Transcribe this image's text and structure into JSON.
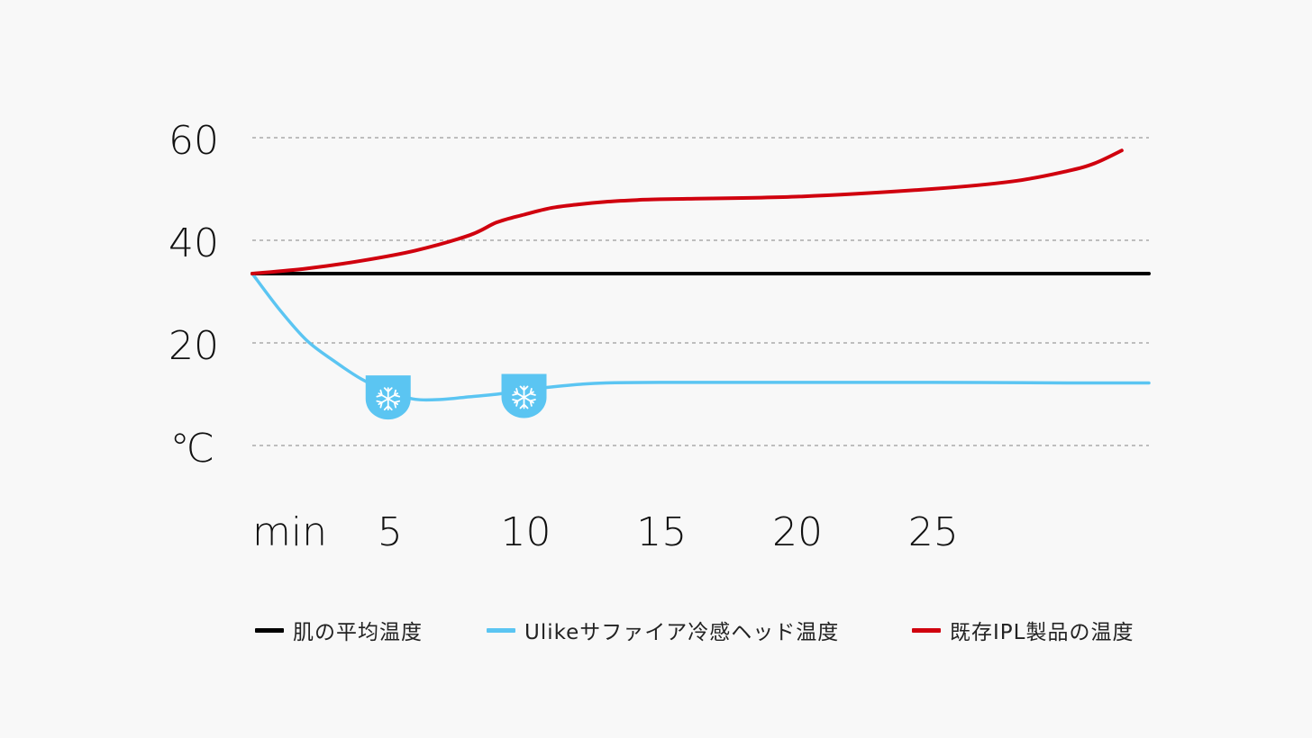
{
  "chart_data": {
    "type": "line",
    "y_unit_label": "℃",
    "x_unit_label": "min",
    "x_ticks": [
      5,
      10,
      15,
      20,
      25
    ],
    "y_ticks": [
      20,
      40,
      60
    ],
    "ylim": [
      0,
      60
    ],
    "xlim": [
      0,
      33
    ],
    "grid": true,
    "legend_position": "bottom",
    "series": [
      {
        "name": "肌の平均温度",
        "color": "#000000",
        "x": [
          0,
          33
        ],
        "y": [
          33.5,
          33.5
        ]
      },
      {
        "name": "Ulikeサファイア冷感ヘッド温度",
        "color": "#5bc5f2",
        "x": [
          0,
          1,
          2,
          3,
          4,
          5,
          6,
          7,
          8,
          9,
          10,
          11,
          12,
          13,
          15,
          20,
          25,
          30,
          33
        ],
        "y": [
          33.5,
          26.5,
          20.5,
          16.5,
          13,
          10.5,
          9,
          9,
          9.5,
          10,
          10.8,
          11.4,
          11.9,
          12.2,
          12.3,
          12.3,
          12.3,
          12.2,
          12.2
        ],
        "markers": [
          {
            "x": 5,
            "icon": "snowflake-icon"
          },
          {
            "x": 10,
            "icon": "snowflake-icon"
          }
        ]
      },
      {
        "name": "既存IPL製品の温度",
        "color": "#d0000e",
        "x": [
          0,
          2,
          4,
          6,
          8,
          9,
          10,
          11,
          12,
          13,
          14,
          15,
          20,
          25,
          28,
          30,
          31,
          32
        ],
        "y": [
          33.5,
          34.5,
          36,
          38,
          41,
          43.5,
          45,
          46.3,
          47,
          47.5,
          47.8,
          48,
          48.5,
          50,
          51.5,
          53.5,
          55,
          57.5
        ]
      }
    ]
  }
}
